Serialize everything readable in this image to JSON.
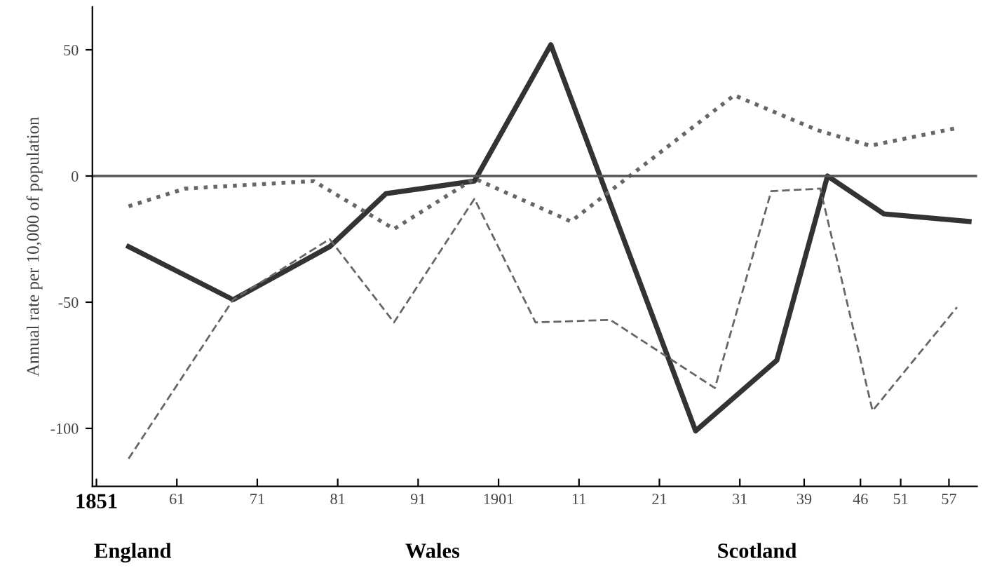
{
  "chart_data": {
    "type": "line",
    "ylabel": "Annual rate per 10,000 of population",
    "xlim": [
      1850.5,
      1960.5
    ],
    "ylim": [
      -123,
      67
    ],
    "xticks": [
      {
        "value": 1851,
        "label": "1851"
      },
      {
        "value": 1861,
        "label": "61"
      },
      {
        "value": 1871,
        "label": "71"
      },
      {
        "value": 1881,
        "label": "81"
      },
      {
        "value": 1891,
        "label": "91"
      },
      1901,
      {
        "value": 1911,
        "label": "11"
      },
      {
        "value": 1921,
        "label": "21"
      },
      {
        "value": 1931,
        "label": "31"
      },
      {
        "value": 1939,
        "label": "39"
      },
      {
        "value": 1946,
        "label": "46"
      },
      {
        "value": 1951,
        "label": "51"
      },
      {
        "value": 1957,
        "label": "57"
      }
    ],
    "yticks": [
      50,
      0,
      -50,
      -100
    ],
    "grid": false,
    "legend": false,
    "ref_lines": [
      {
        "axis": "y",
        "value": 0,
        "color": "#555555",
        "line_style": "solid"
      }
    ],
    "series": [
      {
        "color": "#333333",
        "line_style": "solid",
        "x": [
          1855,
          1868,
          1880,
          1887,
          1898,
          1907.5,
          1925.5,
          1935.6,
          1941.9,
          1948.9,
          1959.5
        ],
        "values": [
          -28,
          -49,
          -28,
          -7,
          -2,
          52,
          -101,
          -73,
          0,
          -15,
          -18
        ]
      },
      {
        "color": "#666666",
        "line_style": "dotted",
        "x": [
          1855,
          1862,
          1878,
          1888,
          1898,
          1910,
          1930.3,
          1940.8,
          1947.2,
          1958
        ],
        "values": [
          -12,
          -5,
          -2,
          -21,
          -1,
          -18,
          32,
          18,
          12,
          19
        ]
      },
      {
        "color": "#666666",
        "line_style": "dashed",
        "x": [
          1855,
          1868,
          1880,
          1888,
          1898,
          1905.6,
          1914.9,
          1927.9,
          1934.9,
          1941,
          1947.5,
          1958
        ],
        "values": [
          -112,
          -49,
          -25,
          -58,
          -9,
          -58,
          -57,
          -84,
          -6,
          -5,
          -93,
          -52
        ]
      }
    ],
    "annotations": [
      "England",
      "Wales",
      "Scotland"
    ]
  }
}
